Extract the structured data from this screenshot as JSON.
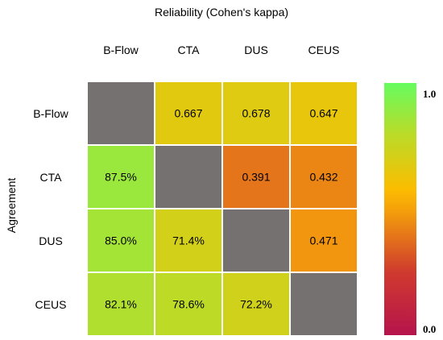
{
  "chart_data": {
    "type": "heatmap",
    "title": "Reliability (Cohen's kappa)",
    "ylabel": "Agreement",
    "categories": [
      "B-Flow",
      "CTA",
      "DUS",
      "CEUS"
    ],
    "cells": [
      [
        null,
        0.667,
        0.678,
        0.647
      ],
      [
        0.875,
        null,
        0.391,
        0.432
      ],
      [
        0.85,
        0.714,
        null,
        0.471
      ],
      [
        0.821,
        0.786,
        0.722,
        null
      ]
    ],
    "labels": [
      [
        "",
        "0.667",
        "0.678",
        "0.647"
      ],
      [
        "87.5%",
        "",
        "0.391",
        "0.432"
      ],
      [
        "85.0%",
        "71.4%",
        "",
        "0.471"
      ],
      [
        "82.1%",
        "78.6%",
        "72.2%",
        ""
      ]
    ],
    "upper_triangle": "kappa",
    "lower_triangle": "percent agreement",
    "diagonal_color": "#767171",
    "colorscale": {
      "min": 0.0,
      "max": 1.0,
      "min_label": "0.0",
      "max_label": "1.0",
      "stops": [
        {
          "v": 0.0,
          "color": "#b5144c"
        },
        {
          "v": 0.25,
          "color": "#cf3a2e"
        },
        {
          "v": 0.5,
          "color": "#f5a20a"
        },
        {
          "v": 0.58,
          "color": "#fbbd00"
        },
        {
          "v": 0.8,
          "color": "#b9dc29"
        },
        {
          "v": 1.0,
          "color": "#66fc5f"
        }
      ]
    }
  }
}
